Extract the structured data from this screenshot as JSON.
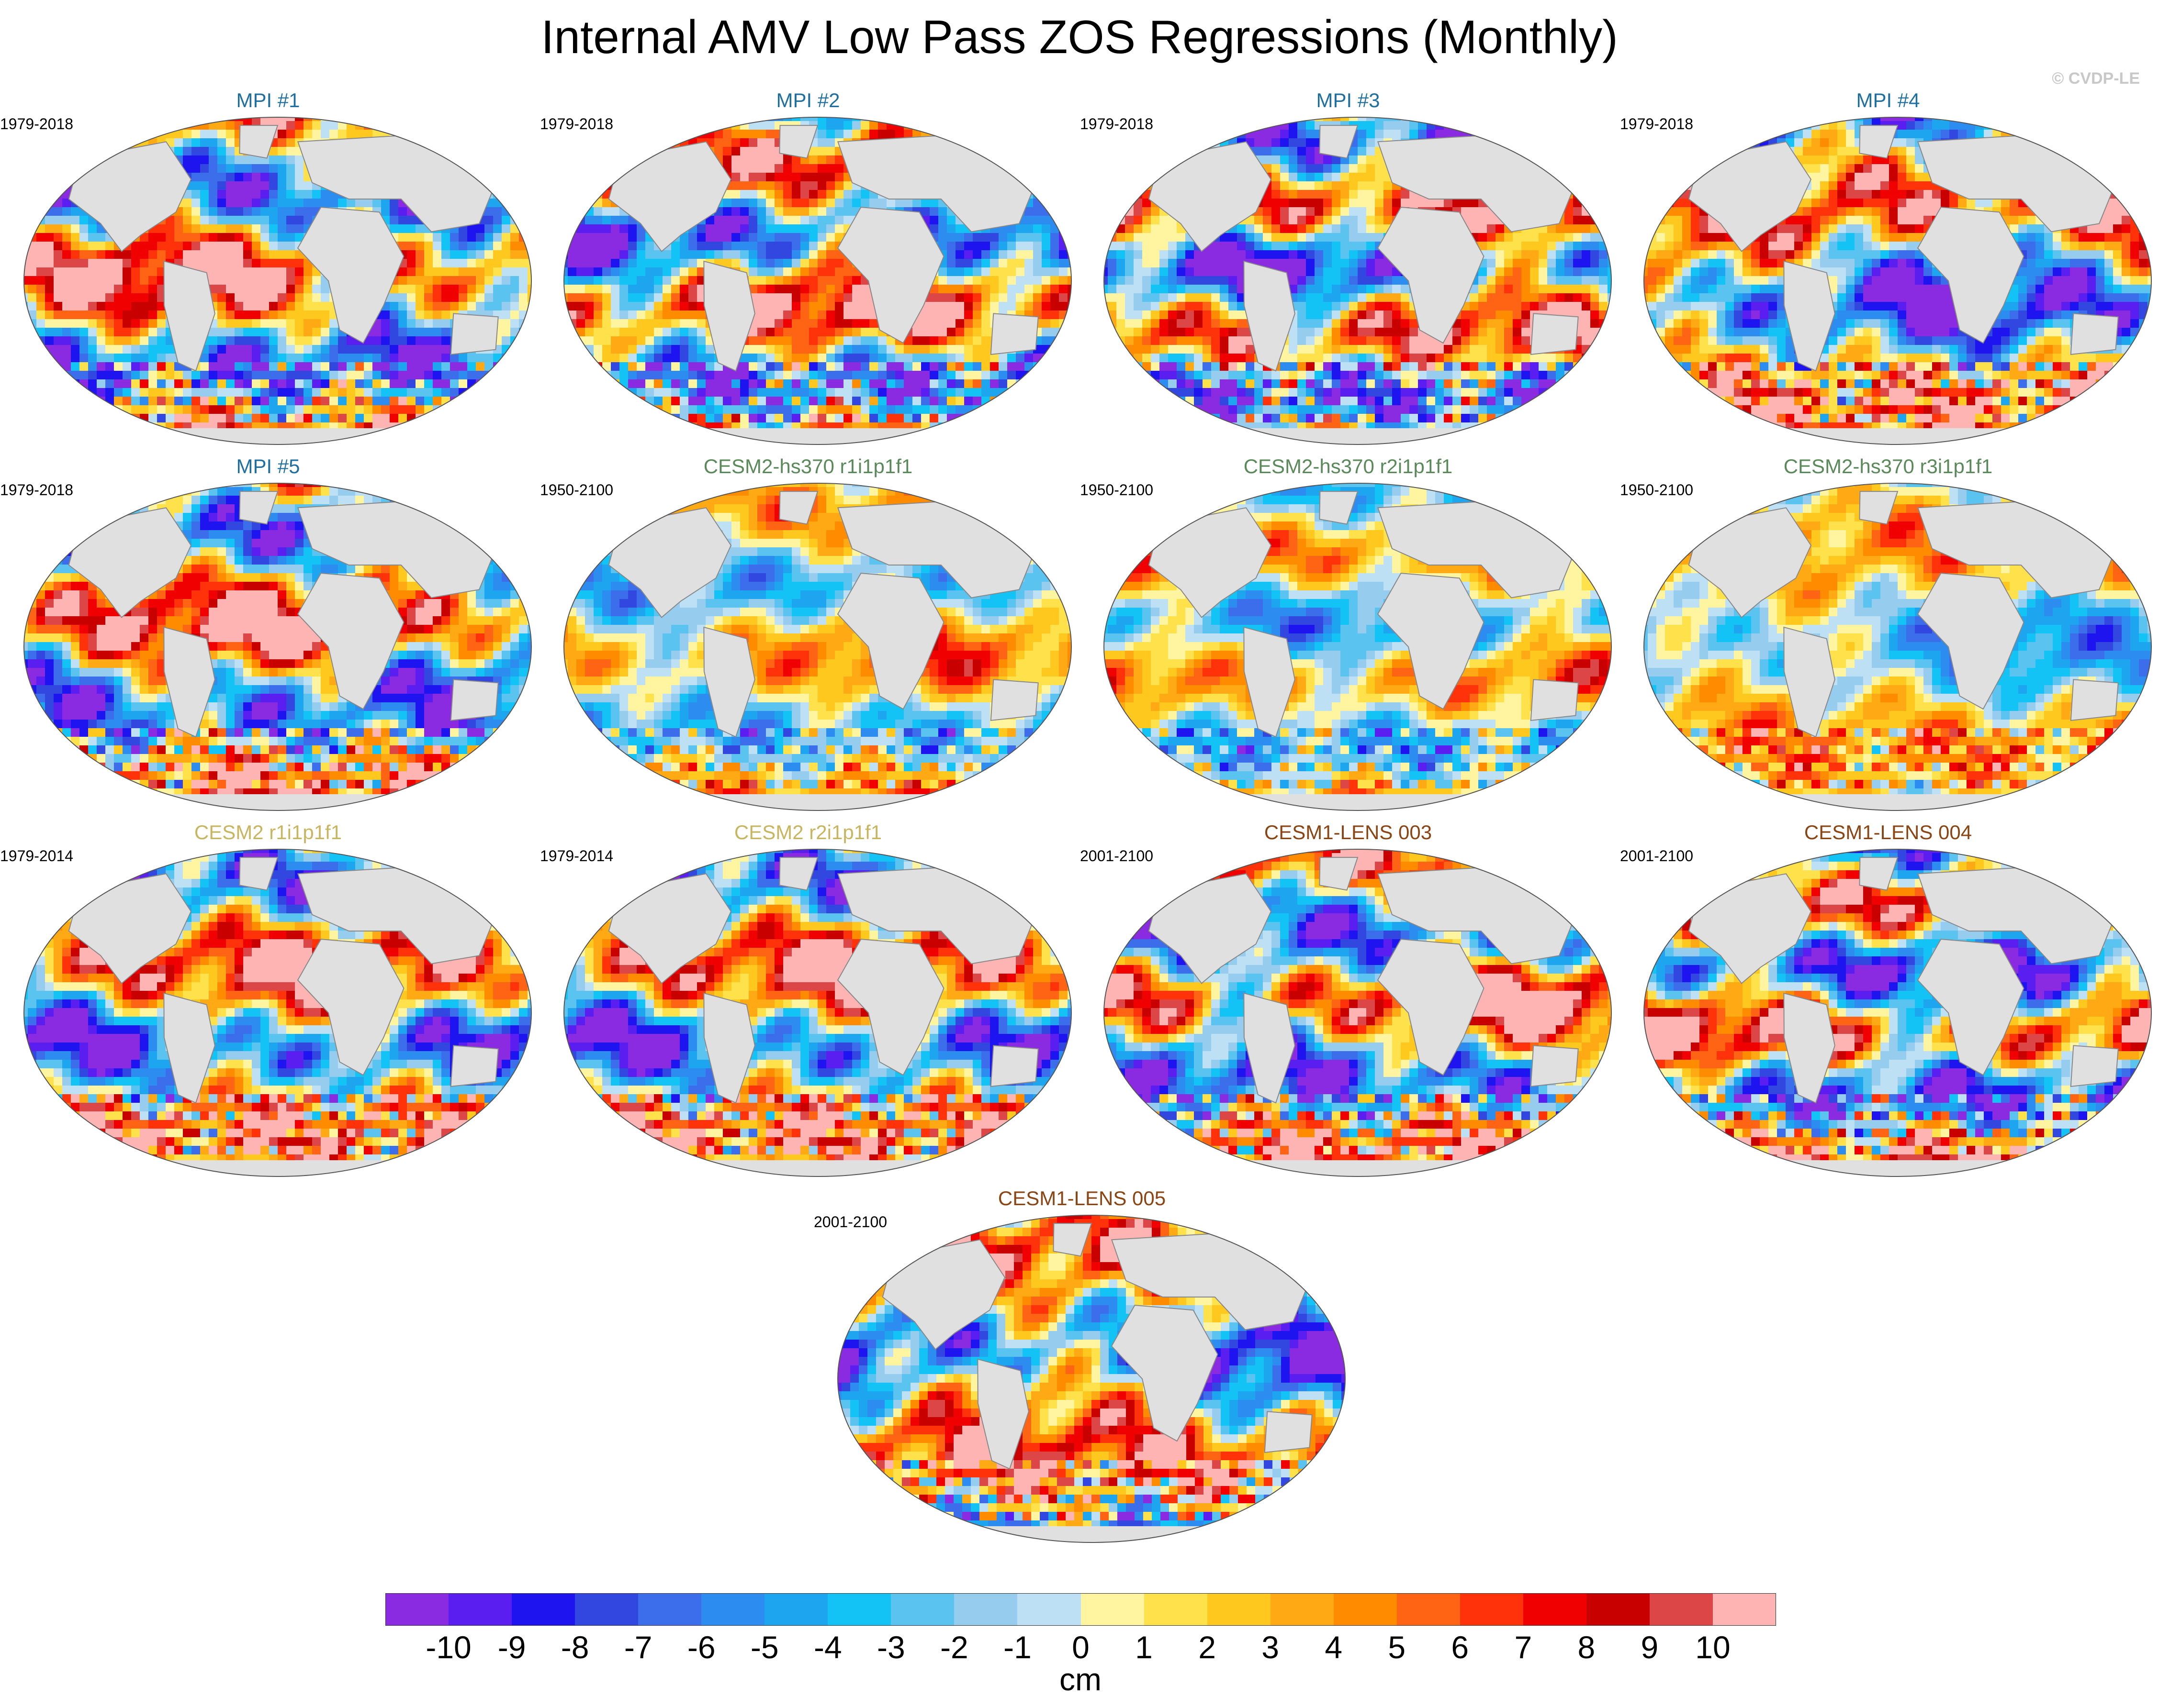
{
  "title": "Internal AMV Low Pass ZOS Regressions (Monthly)",
  "credit": "© CVDP-LE",
  "panels": [
    {
      "title": "MPI #1",
      "period": "1979-2018",
      "color": "#1f6fa0",
      "pattern": 1
    },
    {
      "title": "MPI #2",
      "period": "1979-2018",
      "color": "#1f6fa0",
      "pattern": 2
    },
    {
      "title": "MPI #3",
      "period": "1979-2018",
      "color": "#1f6fa0",
      "pattern": 3
    },
    {
      "title": "MPI #4",
      "period": "1979-2018",
      "color": "#1f6fa0",
      "pattern": 4
    },
    {
      "title": "MPI #5",
      "period": "1979-2018",
      "color": "#1f6fa0",
      "pattern": 5
    },
    {
      "title": "CESM2-hs370 r1i1p1f1",
      "period": "1950-2100",
      "color": "#5a8a5a",
      "pattern": 6
    },
    {
      "title": "CESM2-hs370 r2i1p1f1",
      "period": "1950-2100",
      "color": "#5a8a5a",
      "pattern": 7
    },
    {
      "title": "CESM2-hs370 r3i1p1f1",
      "period": "1950-2100",
      "color": "#5a8a5a",
      "pattern": 8
    },
    {
      "title": "CESM2 r1i1p1f1",
      "period": "1979-2014",
      "color": "#c8b560",
      "pattern": 9
    },
    {
      "title": "CESM2 r2i1p1f1",
      "period": "1979-2014",
      "color": "#c8b560",
      "pattern": 9
    },
    {
      "title": "CESM1-LENS 003",
      "period": "2001-2100",
      "color": "#8b4513",
      "pattern": 10
    },
    {
      "title": "CESM1-LENS 004",
      "period": "2001-2100",
      "color": "#8b4513",
      "pattern": 11
    },
    {
      "title": "CESM1-LENS 005",
      "period": "2001-2100",
      "color": "#8b4513",
      "pattern": 12
    }
  ],
  "colorbar": {
    "unit": "cm",
    "colors": [
      "#8a2be2",
      "#5a1ef0",
      "#1e14f0",
      "#3246e0",
      "#3c6eeb",
      "#2d8cf0",
      "#1ea5f0",
      "#14c3f5",
      "#5ac3f0",
      "#96cdef",
      "#bde0f5",
      "#fff5a0",
      "#ffe14b",
      "#ffc81e",
      "#ffaa14",
      "#ff8c00",
      "#ff6414",
      "#ff320a",
      "#f00000",
      "#c80000",
      "#dc4646",
      "#ffb4b4"
    ],
    "labels": [
      "-10",
      "-9",
      "-8",
      "-7",
      "-6",
      "-5",
      "-4",
      "-3",
      "-2",
      "-1",
      "0",
      "1",
      "2",
      "3",
      "4",
      "5",
      "6",
      "7",
      "8",
      "9",
      "10"
    ]
  },
  "land_color": "#e0e0e0"
}
